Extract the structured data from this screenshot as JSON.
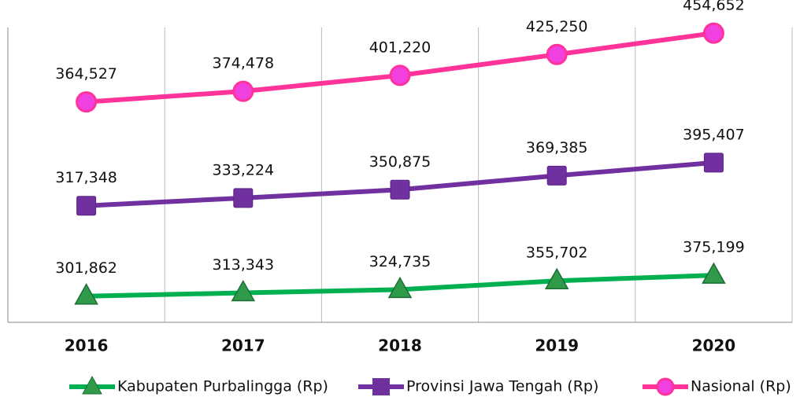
{
  "chart_data": {
    "type": "line",
    "stacked": true,
    "categories": [
      "2016",
      "2017",
      "2018",
      "2019",
      "2020"
    ],
    "series": [
      {
        "name": "Kabupaten Purbalingga (Rp)",
        "color": "#00b050",
        "marker": "triangle",
        "values": [
          301862,
          313343,
          324735,
          355702,
          375199
        ],
        "value_labels": [
          "301,862",
          "313,343",
          "324,735",
          "355,702",
          "375,199"
        ]
      },
      {
        "name": "Provinsi Jawa Tengah (Rp)",
        "color": "#7030a0",
        "marker": "square",
        "values": [
          317348,
          333224,
          350875,
          369385,
          395407
        ],
        "value_labels": [
          "317,348",
          "333,224",
          "350,875",
          "369,385",
          "395,407"
        ]
      },
      {
        "name": "Nasional (Rp)",
        "color": "#ff3399",
        "marker": "circle",
        "values": [
          364527,
          374478,
          401220,
          425250,
          454652
        ],
        "value_labels": [
          "364,527",
          "374,478",
          "401,220",
          "425,250",
          "454,652"
        ]
      }
    ],
    "ylim": [
      210000,
      1314000
    ],
    "legend": "bottom"
  }
}
